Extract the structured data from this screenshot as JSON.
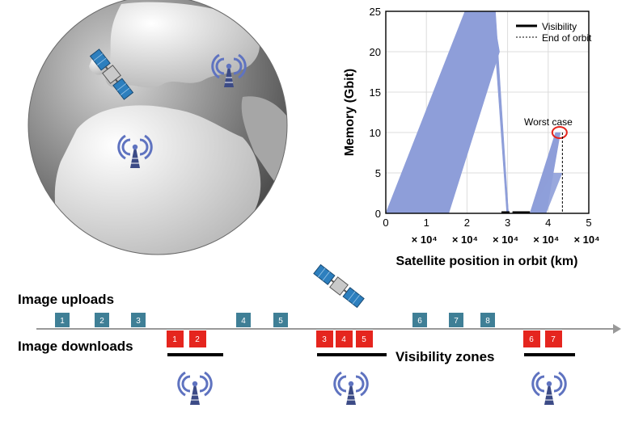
{
  "colors": {
    "upload_box": "#3f7f96",
    "download_box": "#e5251e",
    "memory_fill": "#8e9ed9",
    "visibility_bar": "#000000",
    "antenna": "#5f73c0",
    "worst_case_circle": "#e5251e"
  },
  "chart_data": {
    "type": "area",
    "xlabel": "Satellite position in orbit (km)",
    "ylabel": "Memory (Gbit)",
    "xlim": [
      0,
      5
    ],
    "ylim": [
      0,
      25
    ],
    "xticks": [
      "0",
      "1",
      "2",
      "3",
      "4",
      "5"
    ],
    "yticks": [
      "0",
      "5",
      "10",
      "15",
      "20",
      "25"
    ],
    "x_multiplier_labels": [
      "× 10⁴",
      "× 10⁴",
      "× 10⁴",
      "× 10⁴",
      "× 10⁴"
    ],
    "grid": true,
    "legend_position": "top-right",
    "legend": [
      "Visibility",
      "End of orbit"
    ],
    "annotation": "Worst case",
    "series": [
      {
        "name": "Memory",
        "polygons": [
          [
            [
              0,
              0
            ],
            [
              1.55,
              0
            ],
            [
              2.8,
              20
            ],
            [
              2.63,
              25
            ],
            [
              1.95,
              25
            ],
            [
              0,
              0
            ]
          ],
          [
            [
              2.63,
              25
            ],
            [
              2.98,
              0
            ],
            [
              3.02,
              0
            ],
            [
              2.7,
              25
            ]
          ],
          [
            [
              3.55,
              0
            ],
            [
              3.95,
              0
            ],
            [
              4.3,
              10
            ],
            [
              4.18,
              10
            ],
            [
              3.55,
              0
            ]
          ]
        ],
        "upper_steps": [
          [
            0,
            0
          ],
          [
            2.22,
            15
          ],
          [
            2.62,
            15
          ],
          [
            2.42,
            20
          ],
          [
            2.8,
            20
          ],
          [
            2.63,
            25
          ]
        ],
        "lower_steps": [
          [
            1.55,
            0
          ],
          [
            2.1,
            15
          ],
          [
            2.5,
            15
          ],
          [
            2.8,
            20
          ]
        ],
        "worst_case_point": [
          4.28,
          10
        ]
      }
    ],
    "visibility_segments": [
      [
        2.85,
        3.05
      ],
      [
        3.12,
        3.55
      ]
    ],
    "end_of_orbit_x": 4.35
  },
  "timeline": {
    "uploads_label": "Image uploads",
    "downloads_label": "Image downloads",
    "visibility_label": "Visibility zones",
    "uploads": [
      {
        "label": "1",
        "pos": 1
      },
      {
        "label": "2",
        "pos": 2
      },
      {
        "label": "3",
        "pos": 3
      },
      {
        "label": "4",
        "pos": 4
      },
      {
        "label": "5",
        "pos": 5
      },
      {
        "label": "6",
        "pos": 6
      },
      {
        "label": "7",
        "pos": 7
      },
      {
        "label": "8",
        "pos": 8
      }
    ],
    "downloads": [
      {
        "label": "1"
      },
      {
        "label": "2"
      },
      {
        "label": "3"
      },
      {
        "label": "4"
      },
      {
        "label": "5"
      },
      {
        "label": "6"
      },
      {
        "label": "7"
      }
    ]
  }
}
